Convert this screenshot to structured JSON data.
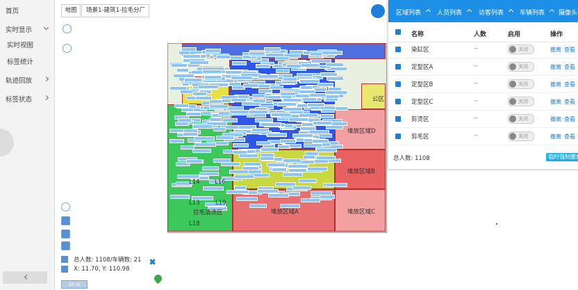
{
  "sidebar": {
    "items": [
      {
        "label": "首页"
      },
      {
        "label": "实时显示"
      },
      {
        "label": "实时视图"
      },
      {
        "label": "标签统计"
      },
      {
        "label": "轨迹回放"
      },
      {
        "label": "标签状态"
      }
    ]
  },
  "map": {
    "view_button": "地图",
    "scene": "场景1-建筑1-拉毛分厂",
    "zones": [
      "堆放区域D",
      "堆放区域B",
      "堆放区域A",
      "堆放区域C",
      "L14",
      "L16",
      "L13",
      "L19",
      "拉毛清洗区",
      "L18",
      "公区"
    ],
    "stats": "总人数: 1108/车辆数: 21",
    "coords": "X: 11.70, Y: 110.98",
    "scale": "20 m"
  },
  "panel": {
    "tabs": [
      "区域列表",
      "人员列表",
      "访客列表",
      "车辆列表",
      "摄像头列表"
    ],
    "columns": [
      "名称",
      "人数",
      "启用",
      "操作"
    ],
    "rows": [
      [
        "染缸区",
        "--",
        "关闭",
        "撤离",
        "查看"
      ],
      [
        "定型区A",
        "--",
        "关闭",
        "撤离",
        "查看"
      ],
      [
        "定型区B",
        "--",
        "关闭",
        "撤离",
        "查看"
      ],
      [
        "定型区C",
        "--",
        "关闭",
        "撤离",
        "查看"
      ],
      [
        "剪烫区",
        "--",
        "关闭",
        "撤离",
        "查看"
      ],
      [
        "剪毛区",
        "--",
        "关闭",
        "撤离",
        "查看"
      ]
    ],
    "total": "总人数: 1108",
    "evacuate_button": "临时强制撤离"
  }
}
